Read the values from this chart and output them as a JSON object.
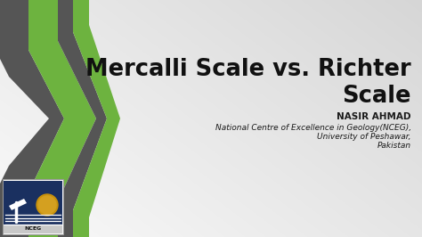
{
  "bg_color_top": "#d8d8d8",
  "bg_color_bottom": "#b8b8b8",
  "title_line1": "Mercalli Scale vs. Richter",
  "title_line2": "Scale",
  "title_color": "#111111",
  "title_fontsize": 18.5,
  "author_name": "NASIR AHMAD",
  "author_fontsize": 7.5,
  "affil_line1": "National Centre of Excellence in Geology(NCEG),",
  "affil_line2": "University of Peshawar,",
  "affil_line3": "Pakistan",
  "affil_fontsize": 6.5,
  "text_color": "#1a1a1a",
  "green_color": "#6db33f",
  "gray_color": "#555555",
  "logo_bg": "#1a3060",
  "logo_bottom_bg": "#2a2a2a"
}
